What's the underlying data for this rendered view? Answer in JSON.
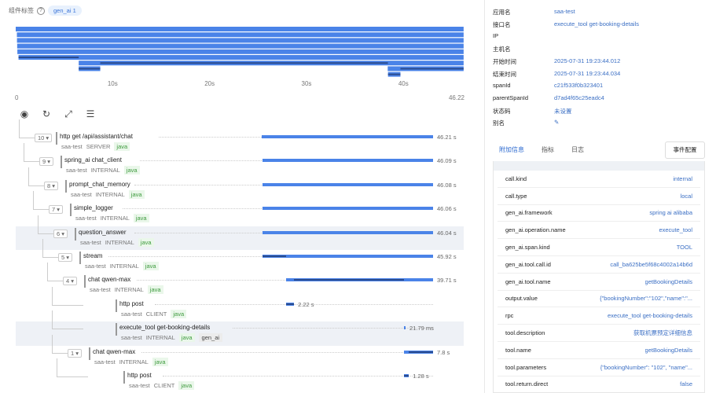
{
  "header": {
    "label": "组件标签",
    "help_icon": "question-circle-icon",
    "chip": "gen_ai 1"
  },
  "overview": {
    "axis_max": 46.22,
    "axis_labels": [
      "0",
      "10s",
      "20s",
      "30s",
      "40s",
      "46.22"
    ],
    "tick_values": [
      0,
      10,
      20,
      30,
      40,
      46.22
    ]
  },
  "toolbar": {
    "icons": [
      "locate-icon",
      "refresh-icon",
      "expand-icon",
      "settings-sliders-icon"
    ]
  },
  "colors": {
    "bar": "#4a83e8",
    "bar_dark": "#2b4c8f",
    "link": "#3b6fc4",
    "lang_tag": "#3e9b3e"
  },
  "spans": [
    {
      "count": "10",
      "name": "http get /api/assistant/chat",
      "app": "saa-test",
      "kind": "SERVER",
      "lang": "java",
      "start": 0,
      "duration": 46.21,
      "duration_label": "46.21 s",
      "depth": 0,
      "dark": []
    },
    {
      "count": "9",
      "name": "spring_ai chat_client",
      "app": "saa-test",
      "kind": "INTERNAL",
      "lang": "java",
      "start": 0.12,
      "duration": 46.09,
      "duration_label": "46.09 s",
      "depth": 1,
      "dark": []
    },
    {
      "count": "8",
      "name": "prompt_chat_memory",
      "app": "saa-test",
      "kind": "INTERNAL",
      "lang": "java",
      "start": 0.13,
      "duration": 46.08,
      "duration_label": "46.08 s",
      "depth": 2,
      "dark": []
    },
    {
      "count": "7",
      "name": "simple_logger",
      "app": "saa-test",
      "kind": "INTERNAL",
      "lang": "java",
      "start": 0.15,
      "duration": 46.06,
      "duration_label": "46.06 s",
      "depth": 3,
      "dark": []
    },
    {
      "count": "6",
      "name": "question_answer",
      "app": "saa-test",
      "kind": "INTERNAL",
      "lang": "java",
      "start": 0.17,
      "duration": 46.04,
      "duration_label": "46.04 s",
      "depth": 4,
      "dark": [],
      "selected": true
    },
    {
      "count": "5",
      "name": "stream",
      "app": "saa-test",
      "kind": "INTERNAL",
      "lang": "java",
      "start": 0.29,
      "duration": 45.92,
      "duration_label": "45.92 s",
      "depth": 5,
      "dark": [
        [
          0.29,
          6.5
        ]
      ]
    },
    {
      "count": "4",
      "name": "chat qwen-max",
      "app": "saa-test",
      "kind": "INTERNAL",
      "lang": "java",
      "start": 6.5,
      "duration": 39.71,
      "duration_label": "39.71 s",
      "depth": 6,
      "dark": [
        [
          8.72,
          38.4
        ]
      ]
    },
    {
      "count": "",
      "name": "http post",
      "app": "saa-test",
      "kind": "CLIENT",
      "lang": "java",
      "start": 6.5,
      "duration": 2.22,
      "duration_label": "2.22 s",
      "depth": 7,
      "dark": [
        [
          6.5,
          8.72
        ]
      ]
    },
    {
      "count": "",
      "name": "execute_tool get-booking-details",
      "app": "saa-test",
      "kind": "INTERNAL",
      "lang": "java",
      "extra_tag": "gen_ai",
      "start": 38.38,
      "duration": 0.02179,
      "duration_label": "21.79 ms",
      "depth": 7,
      "dark": [],
      "selected": true
    },
    {
      "count": "1",
      "name": "chat qwen-max",
      "app": "saa-test",
      "kind": "INTERNAL",
      "lang": "java",
      "start": 38.41,
      "duration": 7.8,
      "duration_label": "7.8 s",
      "depth": 7,
      "dark": [
        [
          39.69,
          46.21
        ]
      ]
    },
    {
      "count": "",
      "name": "http post",
      "app": "saa-test",
      "kind": "CLIENT",
      "lang": "java",
      "start": 38.41,
      "duration": 1.28,
      "duration_label": "1.28 s",
      "depth": 8,
      "dark": [
        [
          38.41,
          39.69
        ]
      ]
    }
  ],
  "details": [
    {
      "label": "应用名",
      "value": "saa-test"
    },
    {
      "label": "接口名",
      "value": "execute_tool get-booking-details"
    },
    {
      "label": "IP",
      "value": ""
    },
    {
      "label": "主机名",
      "value": ""
    },
    {
      "label": "开始时间",
      "value": "2025-07-31 19:23:44.012"
    },
    {
      "label": "结束时间",
      "value": "2025-07-31 19:23:44.034"
    },
    {
      "label": "spanId",
      "value": "c21f533f0b323401"
    },
    {
      "label": "parentSpanId",
      "value": "d7ad4f65c25eadc4"
    },
    {
      "label": "状态码",
      "value": "未设置"
    },
    {
      "label": "别名",
      "value": "✎"
    }
  ],
  "tabs": [
    {
      "label": "附加信息",
      "active": true
    },
    {
      "label": "指标"
    },
    {
      "label": "日志"
    }
  ],
  "event_config_button": "事件配置",
  "attributes": [
    {
      "key": "call.kind",
      "value": "internal"
    },
    {
      "key": "call.type",
      "value": "local"
    },
    {
      "key": "gen_ai.framework",
      "value": "spring ai alibaba"
    },
    {
      "key": "gen_ai.operation.name",
      "value": "execute_tool"
    },
    {
      "key": "gen_ai.span.kind",
      "value": "TOOL"
    },
    {
      "key": "gen_ai.tool.call.id",
      "value": "call_ba625be5f68c4002a14b6d"
    },
    {
      "key": "gen_ai.tool.name",
      "value": "getBookingDetails"
    },
    {
      "key": "output.value",
      "value": "{\"bookingNumber\":\"102\",\"name\":\"..."
    },
    {
      "key": "rpc",
      "value": "execute_tool get-booking-details"
    },
    {
      "key": "tool.description",
      "value": "获取机票预定详细信息"
    },
    {
      "key": "tool.name",
      "value": "getBookingDetails"
    },
    {
      "key": "tool.parameters",
      "value": "{\"bookingNumber\": \"102\", \"name\"..."
    },
    {
      "key": "tool.return.direct",
      "value": "false"
    }
  ]
}
